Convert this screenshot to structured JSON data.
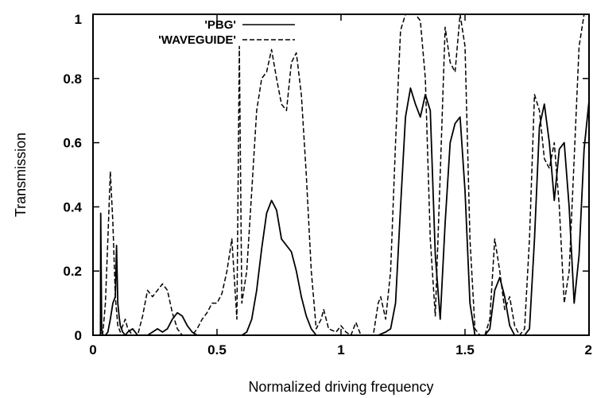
{
  "chart_data": {
    "type": "line",
    "title": "",
    "xlabel": "Normalized driving frequency",
    "ylabel": "Transmission",
    "xlim": [
      0,
      2
    ],
    "ylim": [
      0,
      1
    ],
    "xticks": [
      0,
      0.5,
      1,
      1.5,
      2
    ],
    "xtick_labels": [
      "0",
      "0.5",
      "1",
      "1.5",
      "2"
    ],
    "yticks": [
      0,
      0.2,
      0.4,
      0.6,
      0.8,
      1
    ],
    "ytick_labels": [
      "0",
      "0.2",
      "0.4",
      "0.6",
      "0.8",
      "1"
    ],
    "grid": false,
    "legend_position": "top-left",
    "series": [
      {
        "name": "'PBG'",
        "style": "solid",
        "color": "#000000",
        "x": [
          0,
          0.02,
          0.03,
          0.031,
          0.035,
          0.04,
          0.05,
          0.06,
          0.07,
          0.08,
          0.09,
          0.095,
          0.1,
          0.105,
          0.11,
          0.12,
          0.13,
          0.14,
          0.16,
          0.18,
          0.2,
          0.22,
          0.24,
          0.26,
          0.28,
          0.3,
          0.32,
          0.34,
          0.36,
          0.38,
          0.4,
          0.42,
          0.44,
          0.5,
          0.55,
          0.57,
          0.58,
          0.6,
          0.62,
          0.64,
          0.66,
          0.68,
          0.7,
          0.72,
          0.74,
          0.76,
          0.78,
          0.8,
          0.82,
          0.84,
          0.86,
          0.88,
          0.9,
          0.92,
          0.95,
          1.0,
          1.05,
          1.1,
          1.15,
          1.18,
          1.2,
          1.22,
          1.24,
          1.26,
          1.28,
          1.3,
          1.32,
          1.34,
          1.36,
          1.38,
          1.4,
          1.42,
          1.44,
          1.46,
          1.48,
          1.5,
          1.52,
          1.54,
          1.56,
          1.58,
          1.6,
          1.62,
          1.64,
          1.66,
          1.68,
          1.7,
          1.72,
          1.74,
          1.76,
          1.78,
          1.8,
          1.82,
          1.84,
          1.86,
          1.88,
          1.9,
          1.92,
          1.94,
          1.96,
          1.98,
          2.0
        ],
        "y": [
          0,
          0,
          0,
          0.38,
          0.02,
          0,
          0,
          0.01,
          0.05,
          0.1,
          0.12,
          0.28,
          0.1,
          0.06,
          0.03,
          0.01,
          0,
          0.01,
          0.02,
          0,
          0,
          0,
          0.01,
          0.02,
          0.01,
          0.02,
          0.05,
          0.07,
          0.06,
          0.03,
          0.01,
          0,
          0,
          0,
          0,
          0,
          0,
          0,
          0.01,
          0.05,
          0.14,
          0.27,
          0.38,
          0.42,
          0.39,
          0.3,
          0.28,
          0.26,
          0.2,
          0.12,
          0.06,
          0.02,
          0,
          0,
          0,
          0,
          0,
          0,
          0,
          0.01,
          0.02,
          0.1,
          0.4,
          0.68,
          0.77,
          0.72,
          0.68,
          0.75,
          0.7,
          0.25,
          0.05,
          0.35,
          0.6,
          0.66,
          0.68,
          0.45,
          0.1,
          0,
          0,
          0,
          0.02,
          0.14,
          0.18,
          0.12,
          0.03,
          0,
          0,
          0,
          0.02,
          0.3,
          0.65,
          0.72,
          0.6,
          0.42,
          0.58,
          0.6,
          0.4,
          0.1,
          0.25,
          0.58,
          0.73
        ]
      },
      {
        "name": "'WAVEGUIDE'",
        "style": "dashed",
        "color": "#000000",
        "x": [
          0,
          0.02,
          0.04,
          0.05,
          0.06,
          0.07,
          0.08,
          0.09,
          0.1,
          0.11,
          0.12,
          0.13,
          0.14,
          0.15,
          0.16,
          0.18,
          0.2,
          0.22,
          0.24,
          0.26,
          0.28,
          0.3,
          0.32,
          0.34,
          0.36,
          0.38,
          0.4,
          0.42,
          0.44,
          0.46,
          0.48,
          0.5,
          0.52,
          0.54,
          0.56,
          0.58,
          0.59,
          0.6,
          0.62,
          0.64,
          0.66,
          0.68,
          0.7,
          0.72,
          0.74,
          0.76,
          0.78,
          0.8,
          0.82,
          0.84,
          0.86,
          0.88,
          0.9,
          0.92,
          0.93,
          0.95,
          0.98,
          1.0,
          1.02,
          1.04,
          1.06,
          1.08,
          1.1,
          1.13,
          1.15,
          1.16,
          1.18,
          1.2,
          1.22,
          1.24,
          1.26,
          1.28,
          1.3,
          1.32,
          1.34,
          1.36,
          1.38,
          1.4,
          1.42,
          1.44,
          1.46,
          1.48,
          1.5,
          1.52,
          1.54,
          1.56,
          1.58,
          1.6,
          1.62,
          1.64,
          1.66,
          1.68,
          1.7,
          1.72,
          1.74,
          1.76,
          1.78,
          1.8,
          1.82,
          1.84,
          1.86,
          1.88,
          1.9,
          1.92,
          1.94,
          1.96,
          1.98,
          2.0
        ],
        "y": [
          0,
          0,
          0.01,
          0.1,
          0.3,
          0.51,
          0.35,
          0.12,
          0.03,
          0.01,
          0.03,
          0.05,
          0.02,
          0.01,
          0,
          0,
          0.06,
          0.14,
          0.12,
          0.14,
          0.16,
          0.14,
          0.07,
          0.02,
          0,
          0,
          0,
          0.02,
          0.05,
          0.07,
          0.1,
          0.1,
          0.13,
          0.2,
          0.3,
          0.05,
          0.9,
          0.1,
          0.2,
          0.45,
          0.7,
          0.8,
          0.82,
          0.89,
          0.8,
          0.72,
          0.7,
          0.85,
          0.88,
          0.75,
          0.5,
          0.2,
          0.02,
          0.05,
          0.08,
          0.02,
          0.01,
          0.03,
          0.01,
          0,
          0.04,
          0,
          0,
          0,
          0.1,
          0.12,
          0.05,
          0.2,
          0.6,
          0.95,
          1,
          1,
          1,
          0.98,
          0.8,
          0.3,
          0.06,
          0.5,
          0.96,
          0.85,
          0.82,
          1,
          0.9,
          0.3,
          0.02,
          0,
          0,
          0.05,
          0.3,
          0.2,
          0.08,
          0.12,
          0.03,
          0,
          0.02,
          0.3,
          0.75,
          0.7,
          0.55,
          0.52,
          0.6,
          0.4,
          0.1,
          0.2,
          0.55,
          0.9,
          1,
          1
        ]
      }
    ]
  }
}
